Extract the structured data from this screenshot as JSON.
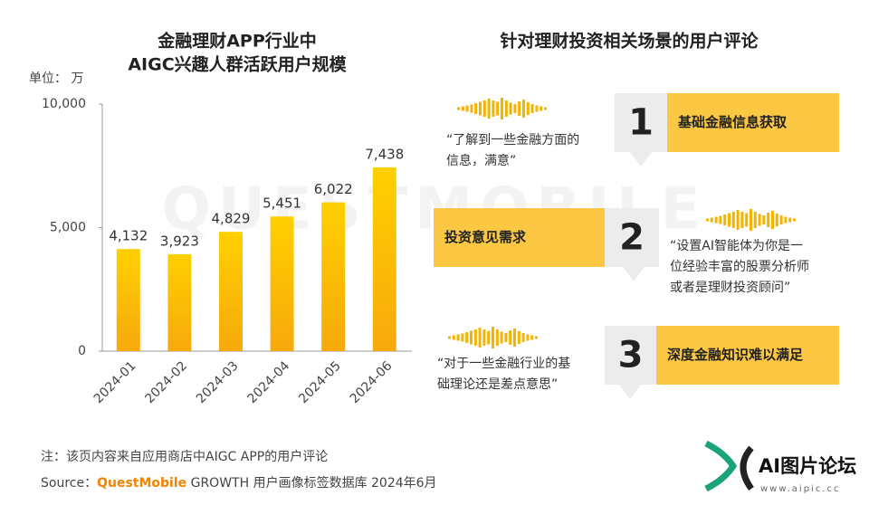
{
  "chart_data": {
    "type": "bar",
    "title": [
      "金融理财APP行业中",
      "AIGC兴趣人群活跃用户规模"
    ],
    "unit": "单位： 万",
    "categories": [
      "2024-01",
      "2024-02",
      "2024-03",
      "2024-04",
      "2024-05",
      "2024-06"
    ],
    "values": [
      4132,
      3923,
      4829,
      5451,
      6022,
      7438
    ],
    "value_labels": [
      "4,132",
      "3,923",
      "4,829",
      "5,451",
      "6,022",
      "7,438"
    ],
    "color": "#fcc20b",
    "ylim": [
      0,
      10000
    ],
    "yticks": [
      0,
      {
        "value": 5000,
        "label": "5,000"
      },
      {
        "value": 10000,
        "label": "10,000"
      }
    ]
  },
  "comments": {
    "title": "针对理财投资相关场景的用户评论",
    "items": [
      {
        "number": "1",
        "label": "基础金融信息获取",
        "quote": [
          "“了解到一些金融方面的",
          "信息，满意”"
        ]
      },
      {
        "number": "2",
        "label": "投资意见需求",
        "quote": [
          "“设置AI智能体为你是一",
          "位经验丰富的股票分析师",
          "或者是理财投资顾问”"
        ]
      },
      {
        "number": "3",
        "label": "深度金融知识难以满足",
        "quote": [
          "“对于一些金融行业的基",
          "础理论还是差点意思”"
        ]
      }
    ]
  },
  "footer": {
    "note": "注：该页内容来自应用商店中AIGC APP的用户评论",
    "source_label": "Source：",
    "source_brand": "QuestMobile",
    "source_text": " GROWTH 用户画像标签数据库 2024年6月"
  },
  "watermark": "QUESTMOBILE",
  "logo": {
    "name": "AI图片论坛",
    "url": "www.aipic.cc"
  }
}
